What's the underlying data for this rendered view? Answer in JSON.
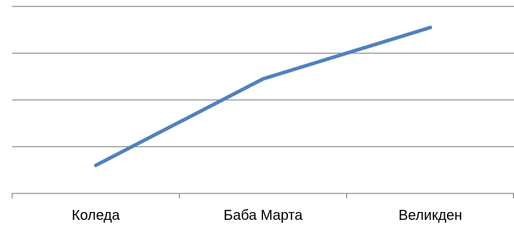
{
  "chart_data": {
    "type": "line",
    "title": "",
    "xlabel": "",
    "ylabel": "",
    "categories": [
      "Коледа",
      "Баба Марта",
      "Великден"
    ],
    "series": [
      {
        "values": [
          0.6,
          2.45,
          3.55
        ],
        "color": "#4f81bd"
      }
    ],
    "ylim": [
      0,
      4
    ],
    "y_gridlines": [
      1,
      2,
      3,
      4
    ],
    "grid": true,
    "y_tick_labels_shown": false,
    "legend": "none"
  }
}
